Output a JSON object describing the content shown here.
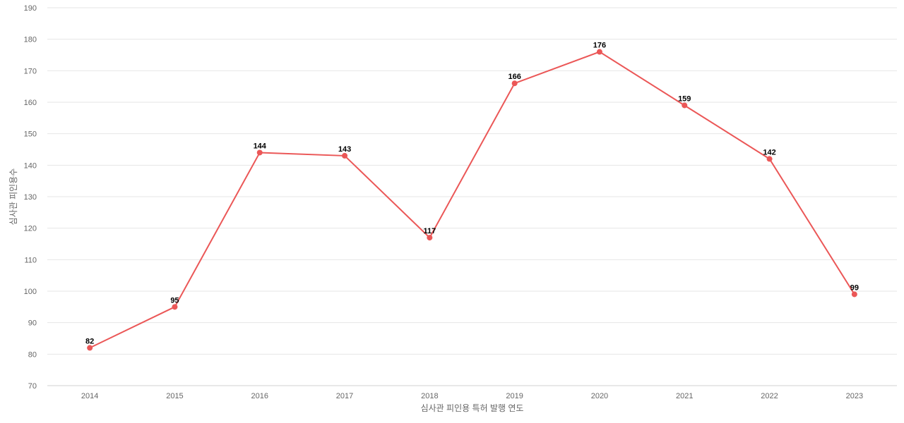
{
  "chart_data": {
    "type": "line",
    "title": "",
    "xlabel": "심사관 피인용 특허 발행 연도",
    "ylabel": "심사관 피인용수",
    "categories": [
      "2014",
      "2015",
      "2016",
      "2017",
      "2018",
      "2019",
      "2020",
      "2021",
      "2022",
      "2023"
    ],
    "series": [
      {
        "values": [
          82,
          95,
          144,
          143,
          117,
          166,
          176,
          159,
          142,
          99
        ],
        "color": "#eb5757"
      }
    ],
    "ylim": [
      70,
      190
    ],
    "yticks": [
      70,
      80,
      90,
      100,
      110,
      120,
      130,
      140,
      150,
      160,
      170,
      180,
      190
    ],
    "grid": true,
    "data_labels": true,
    "legend": "none"
  }
}
